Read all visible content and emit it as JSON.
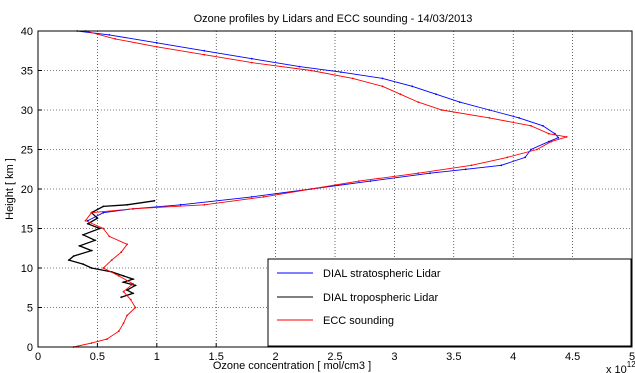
{
  "chart_data": {
    "type": "line",
    "title": "Ozone profiles by Lidars and ECC sounding - 14/03/2013",
    "xlabel": "Ozone concentration [ mol/cm3 ]",
    "ylabel": "Height [ km ]",
    "x_exponent_label": "x 10",
    "x_exponent": "12",
    "xlim": [
      0,
      5
    ],
    "ylim": [
      0,
      40
    ],
    "x_scale_factor": 1000000000000.0,
    "xticks": [
      "0",
      "0.5",
      "1",
      "1.5",
      "2",
      "2.5",
      "3",
      "3.5",
      "4",
      "4.5",
      "5"
    ],
    "yticks": [
      "0",
      "5",
      "10",
      "15",
      "20",
      "25",
      "30",
      "35",
      "40"
    ],
    "grid": true,
    "legend_position": "bottom-right",
    "series": [
      {
        "name": "DIAL stratospheric Lidar",
        "color": "#0000ff",
        "points": [
          [
            0.33,
            40
          ],
          [
            0.6,
            39.5
          ],
          [
            1.0,
            38.5
          ],
          [
            1.4,
            37.5
          ],
          [
            1.8,
            36.5
          ],
          [
            2.2,
            35.5
          ],
          [
            2.55,
            34.8
          ],
          [
            2.9,
            34
          ],
          [
            3.15,
            33
          ],
          [
            3.35,
            32
          ],
          [
            3.55,
            31
          ],
          [
            3.8,
            30
          ],
          [
            4.05,
            29
          ],
          [
            4.25,
            28
          ],
          [
            4.35,
            27
          ],
          [
            4.38,
            26.5
          ],
          [
            4.3,
            26
          ],
          [
            4.15,
            25
          ],
          [
            4.1,
            24
          ],
          [
            3.9,
            23
          ],
          [
            3.6,
            22.5
          ],
          [
            3.3,
            22
          ],
          [
            2.8,
            21
          ],
          [
            2.3,
            20
          ],
          [
            1.8,
            19
          ],
          [
            1.2,
            18
          ],
          [
            0.8,
            17.5
          ],
          [
            0.55,
            17
          ],
          [
            0.42,
            16
          ]
        ]
      },
      {
        "name": "DIAL tropospheric Lidar",
        "color": "#000000",
        "points": [
          [
            0.98,
            18.5
          ],
          [
            0.75,
            18
          ],
          [
            0.55,
            17.8
          ],
          [
            0.45,
            17
          ],
          [
            0.5,
            16.3
          ],
          [
            0.42,
            15.6
          ],
          [
            0.52,
            15
          ],
          [
            0.38,
            14.2
          ],
          [
            0.48,
            13.5
          ],
          [
            0.35,
            12.8
          ],
          [
            0.45,
            12.2
          ],
          [
            0.3,
            11.5
          ],
          [
            0.26,
            11
          ],
          [
            0.38,
            10.5
          ],
          [
            0.45,
            10
          ],
          [
            0.62,
            9.5
          ],
          [
            0.72,
            9
          ],
          [
            0.8,
            8.6
          ],
          [
            0.72,
            8.2
          ],
          [
            0.82,
            7.8
          ],
          [
            0.75,
            7.2
          ],
          [
            0.8,
            6.8
          ],
          [
            0.7,
            6.3
          ]
        ]
      },
      {
        "name": "ECC sounding",
        "color": "#ff0000",
        "points": [
          [
            0.3,
            0
          ],
          [
            0.45,
            0.5
          ],
          [
            0.58,
            1
          ],
          [
            0.68,
            2
          ],
          [
            0.72,
            3
          ],
          [
            0.75,
            4
          ],
          [
            0.82,
            5
          ],
          [
            0.78,
            6
          ],
          [
            0.72,
            7
          ],
          [
            0.8,
            8
          ],
          [
            0.68,
            9
          ],
          [
            0.55,
            10
          ],
          [
            0.62,
            11
          ],
          [
            0.7,
            12
          ],
          [
            0.75,
            13
          ],
          [
            0.6,
            14
          ],
          [
            0.55,
            15
          ],
          [
            0.4,
            16
          ],
          [
            0.45,
            17
          ],
          [
            0.8,
            17.5
          ],
          [
            1.4,
            18
          ],
          [
            1.9,
            19
          ],
          [
            2.3,
            20
          ],
          [
            2.7,
            21
          ],
          [
            3.2,
            22
          ],
          [
            3.65,
            23
          ],
          [
            3.95,
            24
          ],
          [
            4.2,
            25
          ],
          [
            4.32,
            26
          ],
          [
            4.45,
            26.6
          ],
          [
            4.3,
            27
          ],
          [
            4.15,
            28
          ],
          [
            3.8,
            29
          ],
          [
            3.4,
            30
          ],
          [
            3.2,
            31
          ],
          [
            3.05,
            32
          ],
          [
            2.9,
            33
          ],
          [
            2.65,
            34
          ],
          [
            2.3,
            35
          ],
          [
            1.8,
            36
          ],
          [
            1.4,
            37
          ],
          [
            1.0,
            38
          ],
          [
            0.65,
            39
          ],
          [
            0.4,
            40
          ]
        ]
      }
    ]
  }
}
